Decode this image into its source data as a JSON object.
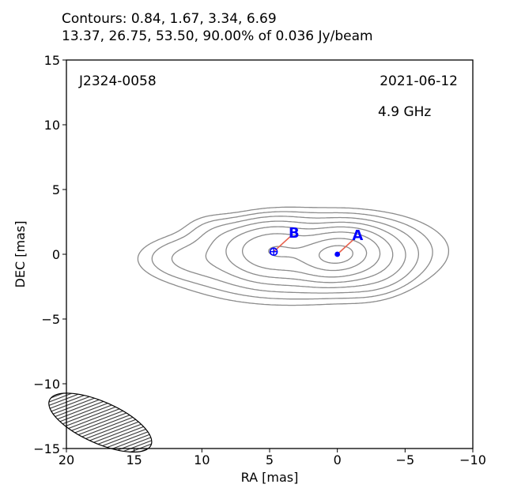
{
  "header": {
    "line1": "Contours: 0.84, 1.67, 3.34, 6.69",
    "line2": "13.37, 26.75, 53.50, 90.00% of 0.036 Jy/beam"
  },
  "chart_data": {
    "type": "contour",
    "source_name": "J2324-0058",
    "date": "2021-06-12",
    "frequency": "4.9 GHz",
    "xlabel": "RA [mas]",
    "ylabel": "DEC [mas]",
    "xlim": [
      20,
      -10
    ],
    "ylim": [
      -15,
      15
    ],
    "xticks": [
      20,
      15,
      10,
      5,
      0,
      -5,
      -10
    ],
    "yticks": [
      15,
      10,
      5,
      0,
      -5,
      -10,
      -15
    ],
    "xtick_labels": [
      "20",
      "15",
      "10",
      "5",
      "0",
      "−5",
      "−10"
    ],
    "ytick_labels": [
      "15",
      "10",
      "5",
      "0",
      "−5",
      "−10",
      "−15"
    ],
    "grid": false,
    "contour_levels_percent": [
      0.84,
      1.67,
      3.34,
      6.69,
      13.37,
      26.75,
      53.5,
      90.0
    ],
    "peak_flux": "0.036 Jy/beam",
    "contour_color": "#8c8c8c",
    "components": [
      {
        "label": "A",
        "x": 0.0,
        "y": 0.0,
        "label_x": -1.5,
        "label_y": 1.45,
        "marker": "dot",
        "color": "#0000ff"
      },
      {
        "label": "B",
        "x": 4.7,
        "y": 0.2,
        "label_x": 3.2,
        "label_y": 1.65,
        "marker": "circle-plus",
        "color": "#0000ff"
      }
    ],
    "component_line_color": "#e8604c",
    "beam": {
      "x": 17.5,
      "y": -13.0,
      "major": 4.1,
      "minor": 1.6,
      "angle_deg": -24,
      "hatch": true
    }
  }
}
